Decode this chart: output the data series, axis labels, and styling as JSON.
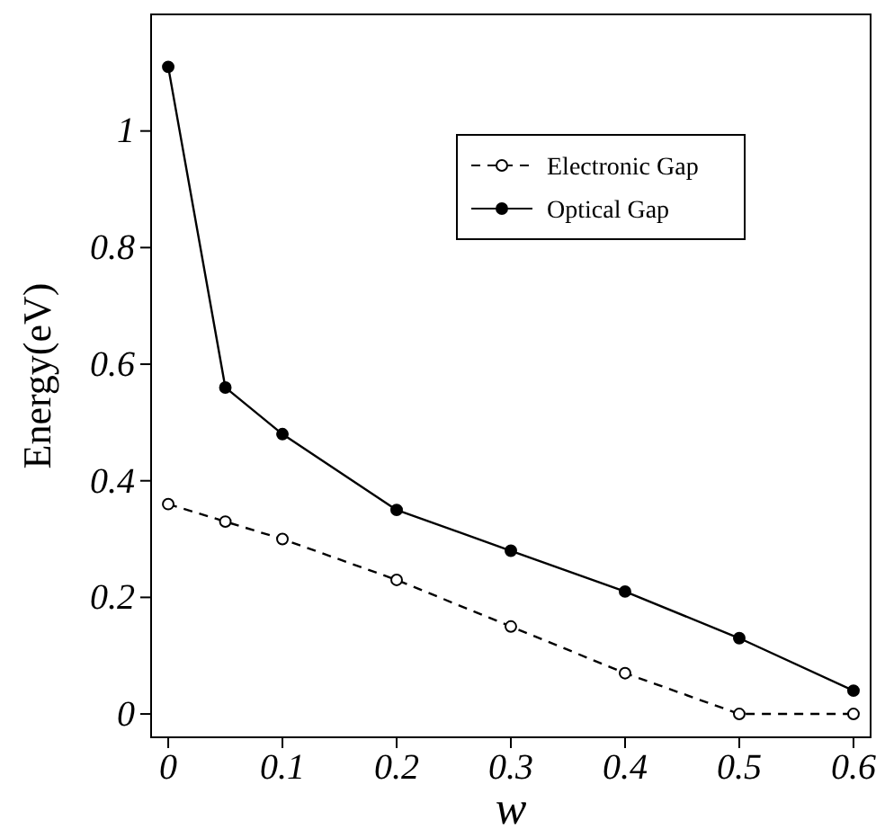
{
  "chart_data": {
    "type": "line",
    "xlabel": "w",
    "ylabel": "Energy(eV)",
    "x": [
      0,
      0.05,
      0.1,
      0.2,
      0.3,
      0.4,
      0.5,
      0.6
    ],
    "series": [
      {
        "name": "Electronic Gap",
        "color": "#000000",
        "line_style": "dashed",
        "values": [
          0.36,
          0.33,
          0.3,
          0.23,
          0.15,
          0.07,
          0.0,
          0.0
        ]
      },
      {
        "name": "Optical Gap",
        "color": "#000000",
        "line_style": "solid",
        "values": [
          1.11,
          0.56,
          0.48,
          0.35,
          0.28,
          0.21,
          0.13,
          0.04
        ]
      }
    ],
    "xlim": [
      -0.015,
      0.615
    ],
    "xticks": [
      0,
      0.1,
      0.2,
      0.3,
      0.4,
      0.5,
      0.6
    ],
    "ylim": [
      -0.04,
      1.2
    ],
    "yticks": [
      0,
      0.2,
      0.4,
      0.6,
      0.8,
      1
    ],
    "marker": "circle",
    "legend": "top right",
    "grid": false
  }
}
